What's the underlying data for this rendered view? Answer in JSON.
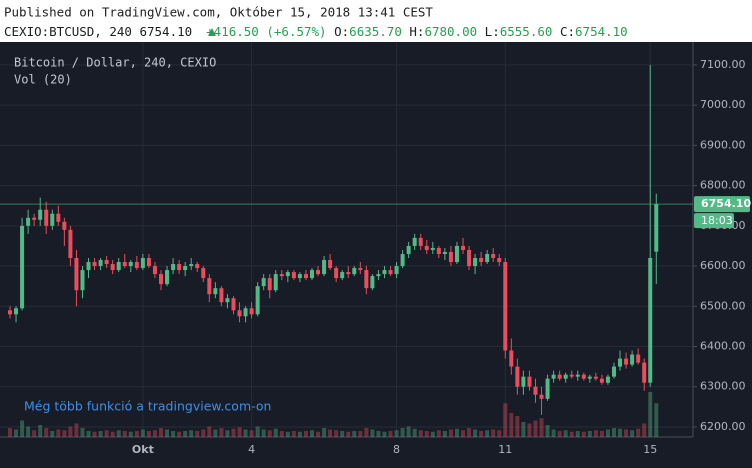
{
  "header": {
    "published": "Published on TradingView.com, Október 15, 2018 13:41 CEST",
    "symbol": "CEXIO:BTCUSD, 240",
    "last": "6754.10",
    "change": "+416.50 (+6.57%)",
    "o_label": "O:",
    "o": "6635.70",
    "h_label": "H:",
    "h": "6780.00",
    "l_label": "L:",
    "l": "6555.60",
    "c_label": "C:",
    "c": "6754.10"
  },
  "chart_data": {
    "type": "candlestick",
    "title": "Bitcoin / Dollar, 240, CEXIO",
    "volume_label": "Vol (20)",
    "annotation": "Még több funkció a tradingview.com-on",
    "up_color": "#53b987",
    "down_color": "#eb4d5c",
    "last_price": 6754.1,
    "last_price_label": "6754.10",
    "countdown": "18:03",
    "ylim": [
      6175,
      7157
    ],
    "yticks": [
      {
        "value": 6200,
        "label": "6200.00"
      },
      {
        "value": 6300,
        "label": "6300.00"
      },
      {
        "value": 6400,
        "label": "6400.00"
      },
      {
        "value": 6500,
        "label": "6500.00"
      },
      {
        "value": 6600,
        "label": "6600.00"
      },
      {
        "value": 6700,
        "label": "6700.00"
      },
      {
        "value": 6800,
        "label": "6800.00"
      },
      {
        "value": 6900,
        "label": "6900.00"
      },
      {
        "value": 7000,
        "label": "7000.00"
      },
      {
        "value": 7100,
        "label": "7100.00"
      }
    ],
    "grid": true,
    "categories": [
      null,
      null,
      null,
      null,
      null,
      null,
      null,
      null,
      null,
      null,
      null,
      null,
      null,
      null,
      null,
      null,
      null,
      null,
      null,
      null,
      null,
      null,
      "Okt",
      null,
      null,
      null,
      null,
      null,
      null,
      null,
      null,
      null,
      null,
      null,
      null,
      null,
      null,
      null,
      null,
      null,
      "4",
      null,
      null,
      null,
      null,
      null,
      null,
      null,
      null,
      null,
      null,
      null,
      null,
      null,
      null,
      null,
      null,
      null,
      null,
      null,
      null,
      null,
      null,
      null,
      "8",
      null,
      null,
      null,
      null,
      null,
      null,
      null,
      null,
      null,
      null,
      null,
      null,
      null,
      null,
      null,
      null,
      null,
      "11",
      null,
      null,
      null,
      null,
      null,
      null,
      null,
      null,
      null,
      null,
      null,
      null,
      null,
      null,
      null,
      null,
      null,
      null,
      null,
      null,
      null,
      null,
      null,
      "15",
      null
    ],
    "candles": [
      [
        6490,
        6500,
        6470,
        6480
      ],
      [
        6480,
        6500,
        6460,
        6495
      ],
      [
        6495,
        6720,
        6490,
        6700
      ],
      [
        6700,
        6740,
        6680,
        6720
      ],
      [
        6720,
        6730,
        6700,
        6715
      ],
      [
        6715,
        6770,
        6700,
        6740
      ],
      [
        6740,
        6760,
        6680,
        6700
      ],
      [
        6700,
        6740,
        6690,
        6730
      ],
      [
        6730,
        6750,
        6700,
        6710
      ],
      [
        6710,
        6720,
        6650,
        6690
      ],
      [
        6690,
        6700,
        6600,
        6620
      ],
      [
        6620,
        6640,
        6500,
        6540
      ],
      [
        6540,
        6600,
        6520,
        6590
      ],
      [
        6590,
        6620,
        6570,
        6610
      ],
      [
        6610,
        6620,
        6590,
        6600
      ],
      [
        6600,
        6620,
        6590,
        6615
      ],
      [
        6615,
        6625,
        6595,
        6605
      ],
      [
        6605,
        6615,
        6580,
        6590
      ],
      [
        6590,
        6620,
        6585,
        6610
      ],
      [
        6610,
        6630,
        6595,
        6600
      ],
      [
        6600,
        6615,
        6585,
        6610
      ],
      [
        6610,
        6625,
        6590,
        6595
      ],
      [
        6595,
        6630,
        6590,
        6620
      ],
      [
        6620,
        6630,
        6595,
        6600
      ],
      [
        6600,
        6610,
        6570,
        6580
      ],
      [
        6580,
        6590,
        6540,
        6555
      ],
      [
        6555,
        6600,
        6550,
        6590
      ],
      [
        6590,
        6620,
        6580,
        6605
      ],
      [
        6605,
        6615,
        6580,
        6590
      ],
      [
        6590,
        6610,
        6575,
        6600
      ],
      [
        6600,
        6620,
        6590,
        6605
      ],
      [
        6605,
        6610,
        6585,
        6595
      ],
      [
        6595,
        6600,
        6560,
        6570
      ],
      [
        6570,
        6580,
        6510,
        6530
      ],
      [
        6530,
        6560,
        6520,
        6545
      ],
      [
        6545,
        6550,
        6500,
        6510
      ],
      [
        6510,
        6530,
        6495,
        6520
      ],
      [
        6520,
        6525,
        6480,
        6490
      ],
      [
        6490,
        6510,
        6460,
        6475
      ],
      [
        6475,
        6500,
        6460,
        6495
      ],
      [
        6495,
        6510,
        6470,
        6480
      ],
      [
        6480,
        6560,
        6475,
        6550
      ],
      [
        6550,
        6580,
        6540,
        6570
      ],
      [
        6570,
        6580,
        6520,
        6540
      ],
      [
        6540,
        6590,
        6535,
        6580
      ],
      [
        6580,
        6590,
        6565,
        6575
      ],
      [
        6575,
        6590,
        6560,
        6585
      ],
      [
        6585,
        6590,
        6565,
        6570
      ],
      [
        6570,
        6585,
        6560,
        6580
      ],
      [
        6580,
        6590,
        6565,
        6570
      ],
      [
        6570,
        6595,
        6565,
        6590
      ],
      [
        6590,
        6600,
        6575,
        6580
      ],
      [
        6580,
        6625,
        6575,
        6615
      ],
      [
        6615,
        6630,
        6590,
        6595
      ],
      [
        6595,
        6600,
        6560,
        6570
      ],
      [
        6570,
        6590,
        6565,
        6585
      ],
      [
        6585,
        6600,
        6570,
        6580
      ],
      [
        6580,
        6600,
        6575,
        6595
      ],
      [
        6595,
        6610,
        6580,
        6590
      ],
      [
        6590,
        6600,
        6530,
        6545
      ],
      [
        6545,
        6580,
        6540,
        6575
      ],
      [
        6575,
        6590,
        6565,
        6580
      ],
      [
        6580,
        6600,
        6570,
        6590
      ],
      [
        6590,
        6600,
        6575,
        6580
      ],
      [
        6580,
        6610,
        6570,
        6600
      ],
      [
        6600,
        6640,
        6595,
        6630
      ],
      [
        6630,
        6660,
        6620,
        6650
      ],
      [
        6650,
        6680,
        6640,
        6670
      ],
      [
        6670,
        6680,
        6640,
        6650
      ],
      [
        6650,
        6665,
        6630,
        6640
      ],
      [
        6640,
        6660,
        6630,
        6645
      ],
      [
        6645,
        6650,
        6620,
        6630
      ],
      [
        6630,
        6645,
        6615,
        6635
      ],
      [
        6635,
        6650,
        6600,
        6610
      ],
      [
        6610,
        6660,
        6605,
        6650
      ],
      [
        6650,
        6670,
        6630,
        6640
      ],
      [
        6640,
        6650,
        6590,
        6600
      ],
      [
        6600,
        6630,
        6580,
        6620
      ],
      [
        6620,
        6635,
        6600,
        6610
      ],
      [
        6610,
        6640,
        6605,
        6630
      ],
      [
        6630,
        6645,
        6610,
        6620
      ],
      [
        6620,
        6630,
        6600,
        6610
      ],
      [
        6610,
        6620,
        6370,
        6390
      ],
      [
        6390,
        6420,
        6330,
        6350
      ],
      [
        6350,
        6370,
        6280,
        6300
      ],
      [
        6300,
        6340,
        6280,
        6325
      ],
      [
        6325,
        6340,
        6290,
        6300
      ],
      [
        6300,
        6320,
        6260,
        6280
      ],
      [
        6280,
        6300,
        6230,
        6270
      ],
      [
        6270,
        6330,
        6265,
        6320
      ],
      [
        6320,
        6340,
        6310,
        6330
      ],
      [
        6330,
        6340,
        6315,
        6320
      ],
      [
        6320,
        6335,
        6310,
        6330
      ],
      [
        6330,
        6340,
        6320,
        6325
      ],
      [
        6325,
        6340,
        6315,
        6330
      ],
      [
        6330,
        6335,
        6315,
        6320
      ],
      [
        6320,
        6330,
        6310,
        6325
      ],
      [
        6325,
        6335,
        6315,
        6320
      ],
      [
        6320,
        6330,
        6305,
        6310
      ],
      [
        6310,
        6330,
        6305,
        6325
      ],
      [
        6325,
        6360,
        6320,
        6350
      ],
      [
        6350,
        6390,
        6340,
        6370
      ],
      [
        6370,
        6385,
        6345,
        6355
      ],
      [
        6355,
        6390,
        6350,
        6380
      ],
      [
        6380,
        6395,
        6355,
        6360
      ],
      [
        6360,
        6370,
        6290,
        6310
      ],
      [
        6310,
        7100,
        6300,
        6620
      ],
      [
        6635.7,
        6780,
        6555.6,
        6754.1
      ]
    ],
    "volume": [
      12,
      10,
      22,
      14,
      9,
      16,
      12,
      8,
      10,
      9,
      14,
      18,
      12,
      8,
      7,
      8,
      9,
      7,
      9,
      8,
      7,
      8,
      10,
      8,
      9,
      12,
      10,
      8,
      7,
      8,
      9,
      8,
      10,
      14,
      10,
      12,
      9,
      11,
      13,
      10,
      9,
      14,
      10,
      9,
      11,
      8,
      7,
      8,
      7,
      8,
      9,
      7,
      12,
      10,
      9,
      8,
      7,
      8,
      8,
      12,
      10,
      8,
      7,
      8,
      9,
      12,
      14,
      11,
      9,
      8,
      7,
      9,
      8,
      10,
      11,
      9,
      12,
      10,
      8,
      9,
      10,
      9,
      45,
      32,
      28,
      20,
      18,
      22,
      25,
      16,
      10,
      8,
      9,
      7,
      8,
      7,
      8,
      9,
      8,
      10,
      12,
      11,
      10,
      9,
      11,
      18,
      60,
      45
    ]
  }
}
